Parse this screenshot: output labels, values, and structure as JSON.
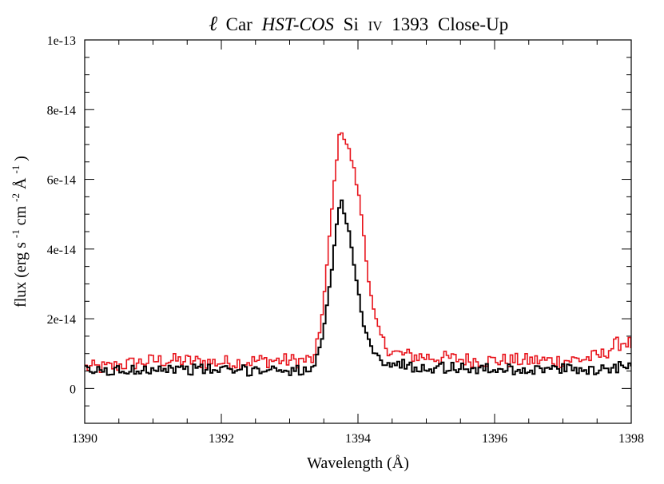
{
  "chart_data": {
    "type": "line",
    "title": {
      "symbol": "ℓ",
      "star": "Car",
      "instrument": "HST-COS",
      "element": "Si",
      "ion": "IV",
      "line": "1393",
      "suffix": "Close-Up"
    },
    "xlabel": "Wavelength (Å)",
    "ylabel": {
      "main": "flux (erg s",
      "exp1": "-1",
      "mid": " cm",
      "exp2": "-2",
      "unit": " Å",
      "exp3": "-1",
      "close": ")"
    },
    "xlim": [
      1390,
      1398
    ],
    "ylim": [
      -1e-14,
      1e-13
    ],
    "x_ticks": [
      {
        "value": 1390,
        "label": "1390"
      },
      {
        "value": 1392,
        "label": "1392"
      },
      {
        "value": 1394,
        "label": "1394"
      },
      {
        "value": 1396,
        "label": "1396"
      },
      {
        "value": 1398,
        "label": "1398"
      }
    ],
    "y_ticks": [
      {
        "value": 0,
        "label": "0"
      },
      {
        "value": 2e-14,
        "label": "2e-14"
      },
      {
        "value": 4e-14,
        "label": "4e-14"
      },
      {
        "value": 6e-14,
        "label": "6e-14"
      },
      {
        "value": 8e-14,
        "label": "8e-14"
      },
      {
        "value": 1e-13,
        "label": "1e-13"
      }
    ],
    "series": [
      {
        "name": "red spectrum",
        "color": "#e8141c",
        "points": [
          [
            1390.0,
            6e-15
          ],
          [
            1390.3,
            6e-15
          ],
          [
            1390.6,
            7e-15
          ],
          [
            1391.0,
            8e-15
          ],
          [
            1391.4,
            8e-15
          ],
          [
            1391.8,
            7.5e-15
          ],
          [
            1392.2,
            7.5e-15
          ],
          [
            1392.6,
            8e-15
          ],
          [
            1392.9,
            8e-15
          ],
          [
            1393.2,
            8e-15
          ],
          [
            1393.35,
            8.5e-15
          ],
          [
            1393.42,
            1.6e-14
          ],
          [
            1393.5,
            2.9e-14
          ],
          [
            1393.56,
            4.2e-14
          ],
          [
            1393.62,
            5.6e-14
          ],
          [
            1393.68,
            6.8e-14
          ],
          [
            1393.73,
            7.5e-14
          ],
          [
            1393.78,
            7.2e-14
          ],
          [
            1393.84,
            6.9e-14
          ],
          [
            1393.9,
            6.5e-14
          ],
          [
            1393.96,
            5.9e-14
          ],
          [
            1394.02,
            5.2e-14
          ],
          [
            1394.08,
            4.2e-14
          ],
          [
            1394.14,
            3.1e-14
          ],
          [
            1394.2,
            2.3e-14
          ],
          [
            1394.28,
            1.7e-14
          ],
          [
            1394.36,
            1.3e-14
          ],
          [
            1394.45,
            1.1e-14
          ],
          [
            1394.55,
            1e-14
          ],
          [
            1394.7,
            9.5e-15
          ],
          [
            1395.0,
            9e-15
          ],
          [
            1395.4,
            8.5e-15
          ],
          [
            1395.8,
            8e-15
          ],
          [
            1396.2,
            8e-15
          ],
          [
            1396.6,
            8e-15
          ],
          [
            1397.0,
            8e-15
          ],
          [
            1397.3,
            8.5e-15
          ],
          [
            1397.55,
            9.5e-15
          ],
          [
            1397.75,
            1.25e-14
          ],
          [
            1397.9,
            1.35e-14
          ],
          [
            1398.0,
            1.25e-14
          ]
        ]
      },
      {
        "name": "black spectrum",
        "color": "#000000",
        "points": [
          [
            1390.0,
            5e-15
          ],
          [
            1390.3,
            5e-15
          ],
          [
            1390.6,
            5e-15
          ],
          [
            1391.0,
            6e-15
          ],
          [
            1391.4,
            5.5e-15
          ],
          [
            1391.8,
            5.5e-15
          ],
          [
            1392.2,
            5e-15
          ],
          [
            1392.6,
            5.5e-15
          ],
          [
            1392.9,
            5.5e-15
          ],
          [
            1393.2,
            5e-15
          ],
          [
            1393.35,
            5.5e-15
          ],
          [
            1393.42,
            1.1e-14
          ],
          [
            1393.5,
            1.9e-14
          ],
          [
            1393.56,
            2.8e-14
          ],
          [
            1393.62,
            3.8e-14
          ],
          [
            1393.68,
            4.8e-14
          ],
          [
            1393.73,
            5.5e-14
          ],
          [
            1393.78,
            5.1e-14
          ],
          [
            1393.84,
            4.6e-14
          ],
          [
            1393.9,
            3.9e-14
          ],
          [
            1393.96,
            3.1e-14
          ],
          [
            1394.02,
            2.3e-14
          ],
          [
            1394.08,
            1.75e-14
          ],
          [
            1394.14,
            1.35e-14
          ],
          [
            1394.2,
            1.1e-14
          ],
          [
            1394.28,
            9e-15
          ],
          [
            1394.36,
            8e-15
          ],
          [
            1394.45,
            7.5e-15
          ],
          [
            1394.55,
            7e-15
          ],
          [
            1394.7,
            6.5e-15
          ],
          [
            1395.0,
            6e-15
          ],
          [
            1395.4,
            6e-15
          ],
          [
            1395.8,
            5.5e-15
          ],
          [
            1396.2,
            5.5e-15
          ],
          [
            1396.6,
            5.5e-15
          ],
          [
            1397.0,
            5.5e-15
          ],
          [
            1397.3,
            5.5e-15
          ],
          [
            1397.55,
            5.5e-15
          ],
          [
            1397.75,
            6e-15
          ],
          [
            1397.9,
            7e-15
          ],
          [
            1398.0,
            8e-15
          ]
        ]
      }
    ]
  }
}
